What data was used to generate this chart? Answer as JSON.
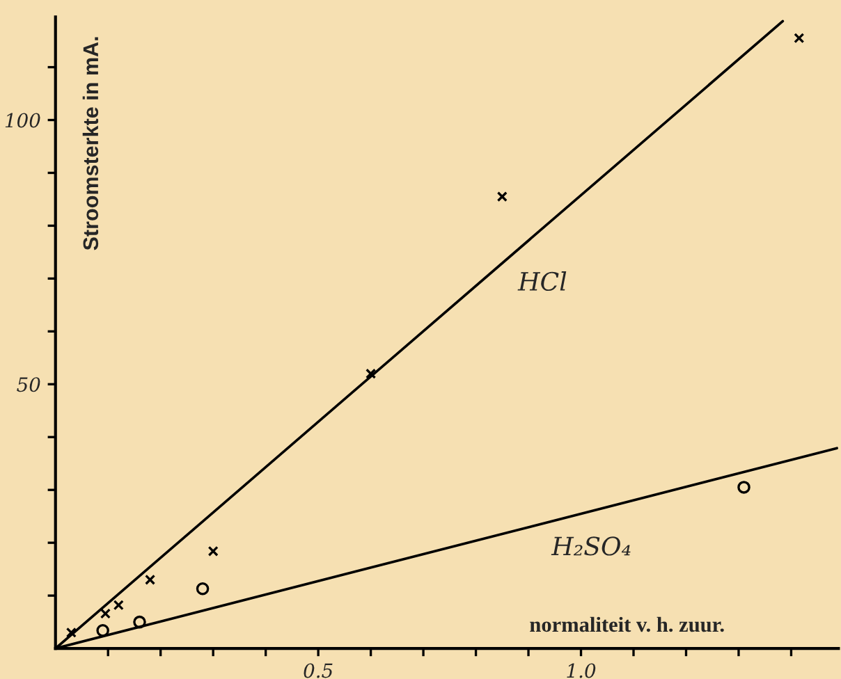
{
  "chart_data": {
    "type": "scatter",
    "xlabel": "normaliteit v. h. zuur.",
    "ylabel": "Stroomsterkte in mA.",
    "xlim": [
      0,
      1.49
    ],
    "ylim": [
      0,
      119.5
    ],
    "xticks": [
      {
        "value": 0.1,
        "label": null
      },
      {
        "value": 0.2,
        "label": null
      },
      {
        "value": 0.3,
        "label": null
      },
      {
        "value": 0.4,
        "label": null
      },
      {
        "value": 0.5,
        "label": "0.5"
      },
      {
        "value": 0.6,
        "label": null
      },
      {
        "value": 0.7,
        "label": null
      },
      {
        "value": 0.8,
        "label": null
      },
      {
        "value": 0.9,
        "label": null
      },
      {
        "value": 1.0,
        "label": "1.0"
      },
      {
        "value": 1.1,
        "label": null
      },
      {
        "value": 1.2,
        "label": null
      },
      {
        "value": 1.3,
        "label": null
      },
      {
        "value": 1.4,
        "label": null
      }
    ],
    "yticks": [
      {
        "value": 10,
        "label": null
      },
      {
        "value": 20,
        "label": null
      },
      {
        "value": 30,
        "label": null
      },
      {
        "value": 40,
        "label": null
      },
      {
        "value": 50,
        "label": "50"
      },
      {
        "value": 60,
        "label": null
      },
      {
        "value": 70,
        "label": null
      },
      {
        "value": 80,
        "label": null
      },
      {
        "value": 90,
        "label": null
      },
      {
        "value": 100,
        "label": "100"
      },
      {
        "value": 110,
        "label": null
      }
    ],
    "grid": false,
    "legend": false,
    "series": [
      {
        "type": "line",
        "name": "HCl",
        "color": "#000000",
        "marker": "none",
        "line_style": "solid",
        "x": [
          0,
          1.384
        ],
        "values": [
          0,
          118.7
        ]
      },
      {
        "type": "line",
        "name": "H₂SO₄",
        "color": "#000000",
        "marker": "none",
        "line_style": "solid",
        "x": [
          0,
          1.487
        ],
        "values": [
          0,
          37.9
        ]
      },
      {
        "color": "#000000",
        "marker": "cross",
        "x": [
          0.03,
          0.095,
          0.12,
          0.18,
          0.3,
          0.6,
          0.85,
          1.415
        ],
        "values": [
          3,
          6.6,
          8.2,
          13,
          18.4,
          52,
          85.5,
          115.5
        ]
      },
      {
        "color": "#000000",
        "marker": "circle",
        "x": [
          0.09,
          0.16,
          0.28,
          1.31
        ],
        "values": [
          3.4,
          5,
          11.3,
          30.5
        ]
      }
    ]
  }
}
